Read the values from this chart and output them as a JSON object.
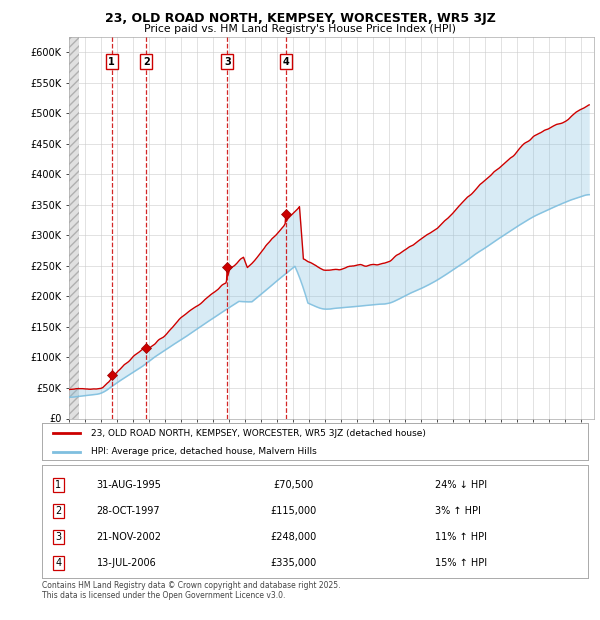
{
  "title": "23, OLD ROAD NORTH, KEMPSEY, WORCESTER, WR5 3JZ",
  "subtitle": "Price paid vs. HM Land Registry's House Price Index (HPI)",
  "ylim": [
    0,
    625000
  ],
  "yticks": [
    0,
    50000,
    100000,
    150000,
    200000,
    250000,
    300000,
    350000,
    400000,
    450000,
    500000,
    550000,
    600000
  ],
  "ytick_labels": [
    "£0",
    "£50K",
    "£100K",
    "£150K",
    "£200K",
    "£250K",
    "£300K",
    "£350K",
    "£400K",
    "£450K",
    "£500K",
    "£550K",
    "£600K"
  ],
  "xlim_start": 1993.0,
  "xlim_end": 2025.8,
  "sale_dates": [
    1995.664,
    1997.829,
    2002.893,
    2006.536
  ],
  "sale_prices": [
    70500,
    115000,
    248000,
    335000
  ],
  "sale_labels": [
    "1",
    "2",
    "3",
    "4"
  ],
  "hpi_color": "#7fbfdf",
  "price_color": "#cc0000",
  "vline_color": "#cc0000",
  "legend_entries": [
    "23, OLD ROAD NORTH, KEMPSEY, WORCESTER, WR5 3JZ (detached house)",
    "HPI: Average price, detached house, Malvern Hills"
  ],
  "table_entries": [
    {
      "num": "1",
      "date": "31-AUG-1995",
      "price": "£70,500",
      "rel": "24% ↓ HPI"
    },
    {
      "num": "2",
      "date": "28-OCT-1997",
      "price": "£115,000",
      "rel": "3% ↑ HPI"
    },
    {
      "num": "3",
      "date": "21-NOV-2002",
      "price": "£248,000",
      "rel": "11% ↑ HPI"
    },
    {
      "num": "4",
      "date": "13-JUL-2006",
      "price": "£335,000",
      "rel": "15% ↑ HPI"
    }
  ],
  "footer": "Contains HM Land Registry data © Crown copyright and database right 2025.\nThis data is licensed under the Open Government Licence v3.0."
}
